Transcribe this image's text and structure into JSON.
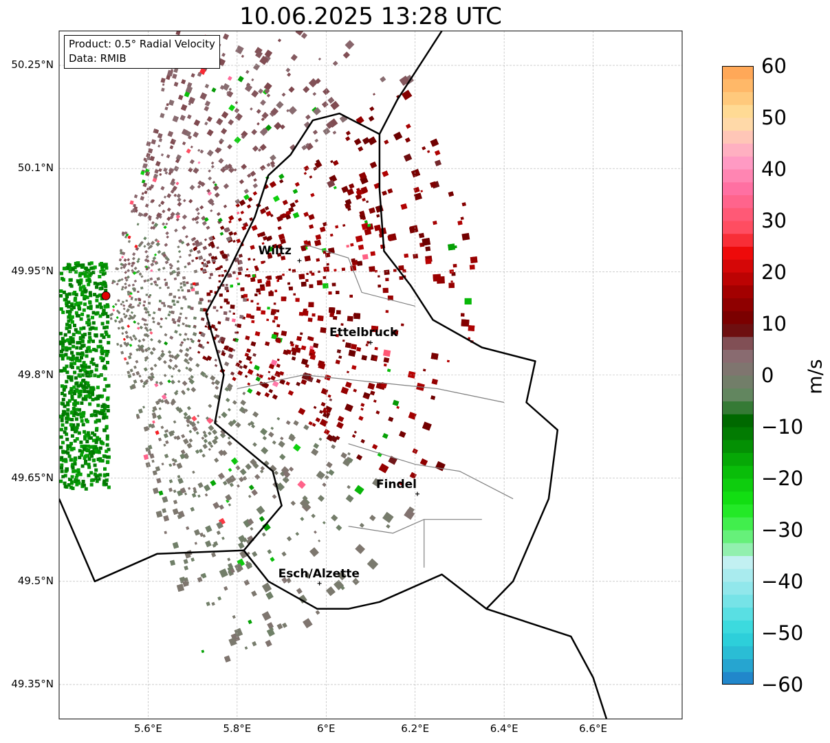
{
  "title": "10.06.2025 13:28 UTC",
  "info_box": {
    "line1": "Product: 0.5° Radial Velocity",
    "line2": "Data: RMIB"
  },
  "map_extent": {
    "lon_min": 5.4,
    "lon_max": 6.8,
    "lat_min": 49.3,
    "lat_max": 50.3
  },
  "lat_ticks": [
    {
      "value": 50.25,
      "label": "50.25°N"
    },
    {
      "value": 50.1,
      "label": "50.1°N"
    },
    {
      "value": 49.95,
      "label": "49.95°N"
    },
    {
      "value": 49.8,
      "label": "49.8°N"
    },
    {
      "value": 49.65,
      "label": "49.65°N"
    },
    {
      "value": 49.5,
      "label": "49.5°N"
    },
    {
      "value": 49.35,
      "label": "49.35°N"
    }
  ],
  "lon_ticks": [
    {
      "value": 5.6,
      "label": "5.6°E"
    },
    {
      "value": 5.8,
      "label": "5.8°E"
    },
    {
      "value": 6.0,
      "label": "6°E"
    },
    {
      "value": 6.2,
      "label": "6.2°E"
    },
    {
      "value": 6.4,
      "label": "6.4°E"
    },
    {
      "value": 6.6,
      "label": "6.6°E"
    }
  ],
  "radar_site": {
    "lon": 5.505,
    "lat": 49.915,
    "color": "#e00000"
  },
  "cities": [
    {
      "name": "Wiltz",
      "lon": 5.94,
      "lat": 49.966
    },
    {
      "name": "Ettelbruck",
      "lon": 6.1,
      "lat": 49.847
    },
    {
      "name": "Findel",
      "lon": 6.205,
      "lat": 49.627
    },
    {
      "name": "Esch/Alzette",
      "lon": 5.985,
      "lat": 49.497
    }
  ],
  "colorbar": {
    "label": "m/s",
    "min": -60,
    "max": 60,
    "ticks": [
      "60",
      "50",
      "40",
      "30",
      "20",
      "10",
      "0",
      "−10",
      "−20",
      "−30",
      "−40",
      "−50",
      "−60"
    ],
    "tick_values": [
      60,
      50,
      40,
      30,
      20,
      10,
      0,
      -10,
      -20,
      -30,
      -40,
      -50,
      -60
    ],
    "stops": [
      {
        "v": -60,
        "color": "#1f78c8"
      },
      {
        "v": -55,
        "color": "#28b4d2"
      },
      {
        "v": -50,
        "color": "#2ed8dc"
      },
      {
        "v": -42,
        "color": "#8ae6ea"
      },
      {
        "v": -36,
        "color": "#c4f0f2"
      },
      {
        "v": -34,
        "color": "#96f0b4"
      },
      {
        "v": -30,
        "color": "#50f060"
      },
      {
        "v": -25,
        "color": "#14e614"
      },
      {
        "v": -18,
        "color": "#08b808"
      },
      {
        "v": -12,
        "color": "#028002"
      },
      {
        "v": -8,
        "color": "#006400"
      },
      {
        "v": -5,
        "color": "#5a8a5a"
      },
      {
        "v": 0,
        "color": "#7a7a6e"
      },
      {
        "v": 4,
        "color": "#8a6a70"
      },
      {
        "v": 8,
        "color": "#7a3a40"
      },
      {
        "v": 9,
        "color": "#6a0000"
      },
      {
        "v": 16,
        "color": "#a00000"
      },
      {
        "v": 24,
        "color": "#f00a0a"
      },
      {
        "v": 28,
        "color": "#ff4a5a"
      },
      {
        "v": 36,
        "color": "#ff6ea0"
      },
      {
        "v": 42,
        "color": "#ffa0c8"
      },
      {
        "v": 46,
        "color": "#ffc4b8"
      },
      {
        "v": 50,
        "color": "#ffe2a0"
      },
      {
        "v": 55,
        "color": "#ffc070"
      },
      {
        "v": 60,
        "color": "#ffa050"
      }
    ]
  }
}
